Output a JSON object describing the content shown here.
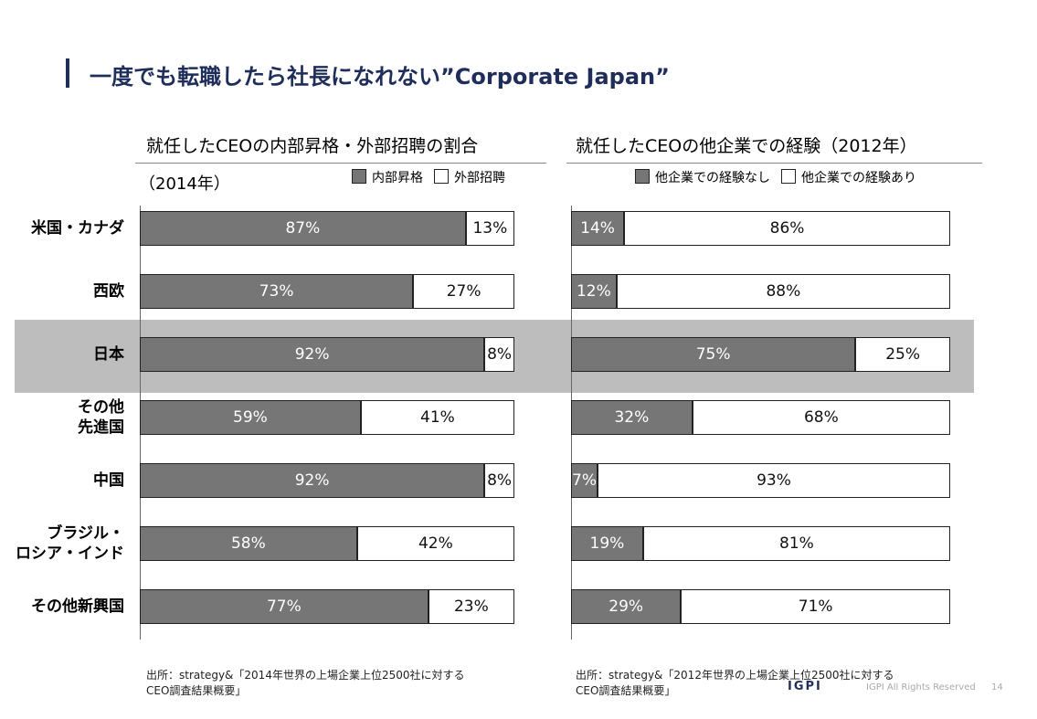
{
  "title": "一度でも転職したら社長になれない”Corporate Japan”",
  "chart_data": [
    {
      "type": "stacked-hbar",
      "title": "就任したCEOの内部昇格・外部招聘の割合",
      "subtitle": "（2014年）",
      "categories": [
        "米国・カナダ",
        "西欧",
        "日本",
        "その他\n先進国",
        "中国",
        "ブラジル・\nロシア・インド",
        "その他新興国"
      ],
      "xlim": [
        0,
        100
      ],
      "series": [
        {
          "name": "内部昇格",
          "color": "#767676",
          "values": [
            87,
            73,
            92,
            59,
            92,
            58,
            77
          ],
          "value_labels": [
            "87%",
            "73%",
            "92%",
            "59%",
            "92%",
            "58%",
            "77%"
          ]
        },
        {
          "name": "外部招聘",
          "color": "#ffffff",
          "values": [
            13,
            27,
            8,
            41,
            8,
            42,
            23
          ],
          "value_labels": [
            "13%",
            "27%",
            "8%",
            "41%",
            "8%",
            "42%",
            "23%"
          ]
        }
      ],
      "source": "出所：strategy&「2014年世界の上場企業上位2500社に対する\nCEO調査結果概要」"
    },
    {
      "type": "stacked-hbar",
      "title": "就任したCEOの他企業での経験（2012年）",
      "xlim": [
        0,
        100
      ],
      "series": [
        {
          "name": "他企業での経験なし",
          "color": "#767676",
          "values": [
            14,
            12,
            75,
            32,
            7,
            19,
            29
          ],
          "value_labels": [
            "14%",
            "12%",
            "75%",
            "32%",
            "7%",
            "19%",
            "29%"
          ]
        },
        {
          "name": "他企業での経験あり",
          "color": "#ffffff",
          "values": [
            86,
            88,
            25,
            68,
            93,
            81,
            71
          ],
          "value_labels": [
            "86%",
            "88%",
            "25%",
            "68%",
            "93%",
            "81%",
            "71%"
          ]
        }
      ],
      "source": "出所：strategy&「2012年世界の上場企業上位2500社に対する\nCEO調査結果概要」"
    }
  ],
  "footer": {
    "logo": "IGPI",
    "rights": "IGPI All Rights Reserved",
    "page": "14"
  }
}
